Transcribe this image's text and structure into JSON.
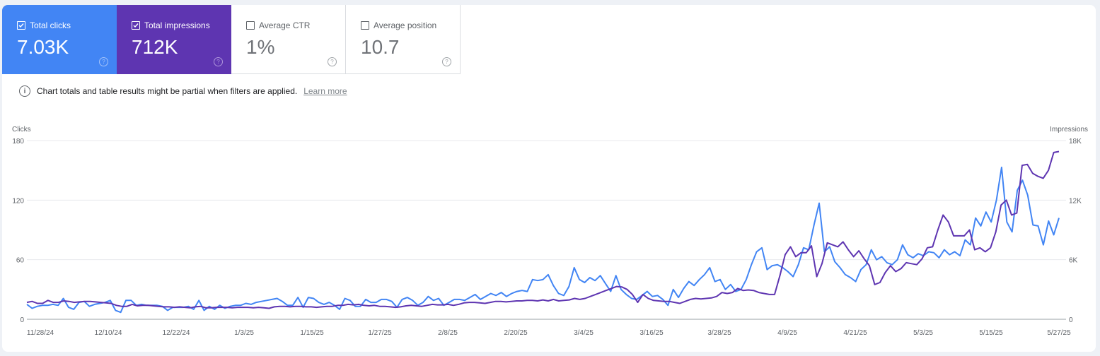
{
  "metrics": [
    {
      "label": "Total clicks",
      "value": "7.03K",
      "checked": true,
      "color": "#4285f4"
    },
    {
      "label": "Total impressions",
      "value": "712K",
      "checked": true,
      "color": "#5e35b1"
    },
    {
      "label": "Average CTR",
      "value": "1%",
      "checked": false
    },
    {
      "label": "Average position",
      "value": "10.7",
      "checked": false
    }
  ],
  "help_glyph": "?",
  "notice": {
    "icon": "info-icon",
    "text": "Chart totals and table results might be partial when filters are applied.",
    "link": "Learn more"
  },
  "chart_data": {
    "type": "line",
    "title": "",
    "xlabel": "",
    "ylabel": "Clicks",
    "ylabel_right": "Impressions",
    "ylim": [
      0,
      180
    ],
    "ylim_right": [
      0,
      18000
    ],
    "yticks": [
      "0",
      "60",
      "120",
      "180"
    ],
    "yticks_right": [
      "0",
      "6K",
      "12K",
      "18K"
    ],
    "grid": true,
    "legend": "none (metric cards act as legend)",
    "x_tick_labels": [
      "11/28/24",
      "12/10/24",
      "12/22/24",
      "1/3/25",
      "1/15/25",
      "1/27/25",
      "2/8/25",
      "2/20/25",
      "3/4/25",
      "3/16/25",
      "3/28/25",
      "4/9/25",
      "4/21/25",
      "5/3/25",
      "5/15/25",
      "5/27/25"
    ],
    "x_start": "11/28/24",
    "x_end": "5/28/25",
    "series": [
      {
        "name": "Clicks",
        "axis": "left",
        "color": "#4285f4",
        "values": [
          15,
          11,
          13,
          14,
          14,
          15,
          14,
          21,
          12,
          10,
          17,
          18,
          13,
          15,
          16,
          17,
          19,
          9,
          7,
          19,
          19,
          14,
          15,
          14,
          14,
          14,
          13,
          9,
          12,
          12,
          12,
          13,
          10,
          19,
          9,
          13,
          10,
          14,
          11,
          13,
          14,
          14,
          16,
          15,
          17,
          18,
          19,
          20,
          21,
          18,
          14,
          14,
          22,
          12,
          22,
          21,
          17,
          15,
          17,
          14,
          10,
          21,
          19,
          13,
          13,
          20,
          17,
          17,
          20,
          20,
          18,
          12,
          20,
          22,
          19,
          14,
          17,
          23,
          19,
          21,
          14,
          17,
          20,
          20,
          19,
          22,
          25,
          20,
          23,
          26,
          24,
          27,
          23,
          26,
          28,
          29,
          28,
          40,
          39,
          40,
          45,
          34,
          26,
          24,
          33,
          52,
          40,
          37,
          42,
          39,
          44,
          36,
          28,
          44,
          30,
          25,
          21,
          20,
          24,
          28,
          23,
          24,
          20,
          14,
          30,
          22,
          31,
          38,
          34,
          40,
          45,
          52,
          38,
          40,
          30,
          35,
          28,
          30,
          40,
          55,
          68,
          72,
          50,
          54,
          55,
          52,
          48,
          43,
          55,
          72,
          70,
          95,
          117,
          68,
          73,
          58,
          52,
          45,
          42,
          38,
          50,
          55,
          70,
          60,
          63,
          57,
          55,
          60,
          75,
          65,
          62,
          66,
          64,
          68,
          67,
          62,
          70,
          65,
          68,
          64,
          80,
          75,
          102,
          94,
          108,
          98,
          120,
          153,
          98,
          88,
          130,
          140,
          125,
          95,
          94,
          75,
          99,
          85,
          102
        ]
      },
      {
        "name": "Impressions",
        "axis": "right",
        "color": "#5e35b1",
        "values": [
          1700,
          1800,
          1600,
          1600,
          1900,
          1700,
          1700,
          1850,
          1800,
          1700,
          1750,
          1800,
          1800,
          1750,
          1700,
          1650,
          1600,
          1400,
          1300,
          1300,
          1500,
          1350,
          1400,
          1400,
          1350,
          1300,
          1250,
          1250,
          1200,
          1250,
          1200,
          1150,
          1250,
          1300,
          1150,
          1150,
          1200,
          1200,
          1200,
          1150,
          1200,
          1200,
          1200,
          1150,
          1200,
          1150,
          1100,
          1250,
          1300,
          1300,
          1250,
          1300,
          1300,
          1250,
          1250,
          1200,
          1250,
          1300,
          1300,
          1400,
          1400,
          1500,
          1450,
          1500,
          1400,
          1350,
          1400,
          1300,
          1300,
          1250,
          1200,
          1250,
          1350,
          1400,
          1350,
          1300,
          1400,
          1500,
          1450,
          1450,
          1500,
          1400,
          1500,
          1650,
          1700,
          1700,
          1650,
          1600,
          1700,
          1800,
          1800,
          1750,
          1800,
          1850,
          1850,
          1900,
          1900,
          1850,
          1950,
          1850,
          2000,
          1850,
          1900,
          1950,
          2100,
          2000,
          2100,
          2300,
          2500,
          2700,
          2900,
          3100,
          3300,
          3250,
          3000,
          2500,
          1700,
          2500,
          2100,
          1900,
          1850,
          1800,
          1800,
          1700,
          1600,
          1800,
          2000,
          2100,
          2050,
          2100,
          2150,
          2300,
          2700,
          2600,
          2700,
          3100,
          2900,
          2950,
          2900,
          2700,
          2600,
          2500,
          2500,
          4400,
          6500,
          7300,
          6300,
          6700,
          6700,
          7400,
          4300,
          5600,
          7700,
          7500,
          7300,
          7800,
          7000,
          6300,
          6900,
          6100,
          5400,
          3500,
          3700,
          4700,
          5400,
          4800,
          5100,
          5700,
          5600,
          5500,
          6100,
          7200,
          7300,
          9000,
          10500,
          9800,
          8400,
          8400,
          8400,
          9000,
          7000,
          7200,
          6800,
          7200,
          8800,
          11500,
          12000,
          10500,
          10700,
          15500,
          15600,
          14700,
          14400,
          14200,
          15000,
          16800,
          16900
        ]
      }
    ]
  }
}
